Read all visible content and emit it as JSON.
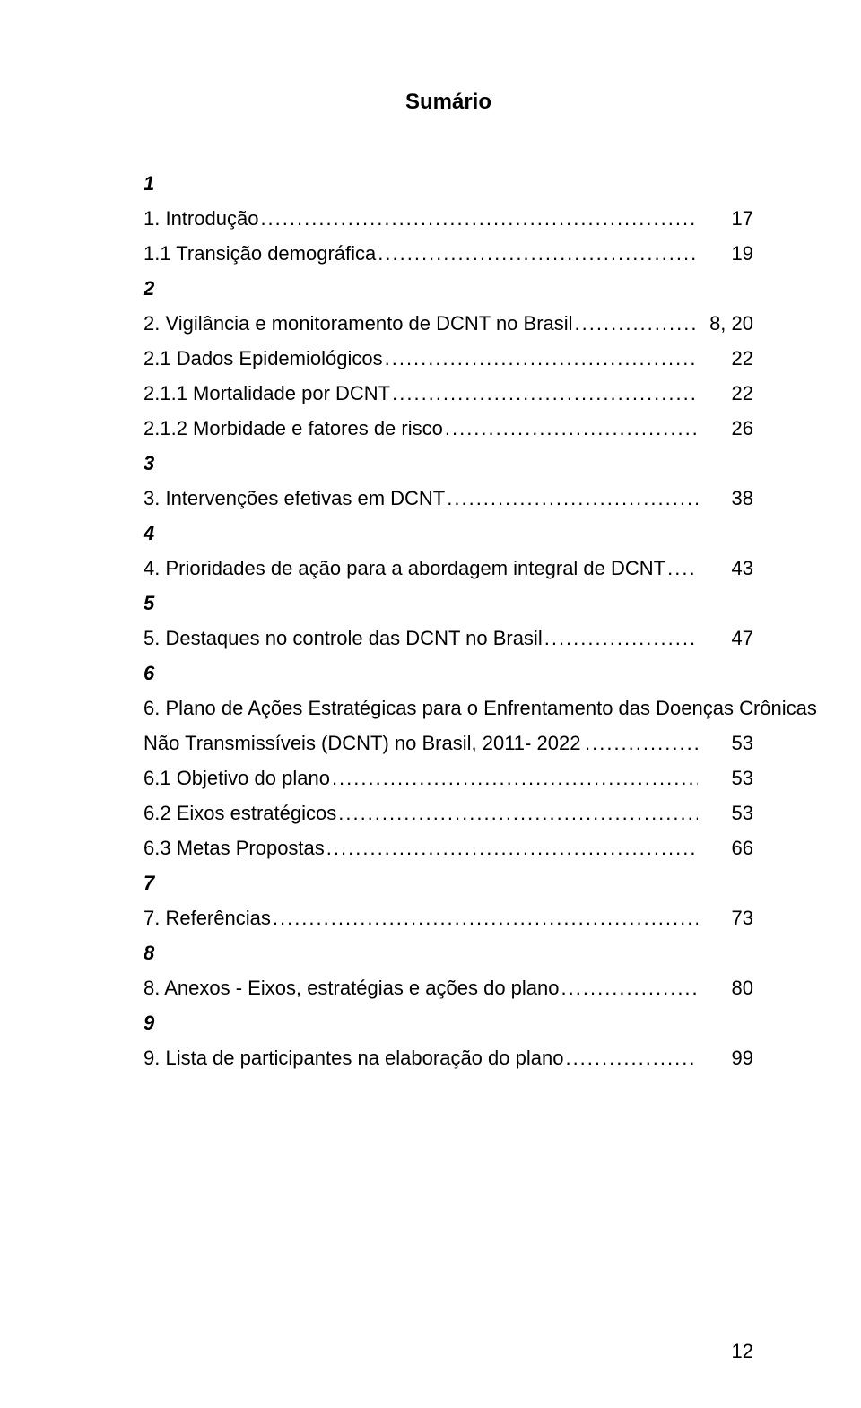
{
  "page": {
    "title": "Sumário",
    "page_number": "12",
    "colors": {
      "background": "#ffffff",
      "text": "#000000"
    },
    "typography": {
      "title_fontsize": 24,
      "body_fontsize": 22,
      "font_family": "Arial"
    },
    "entries": [
      {
        "bold": true,
        "label": "1",
        "continuation": "",
        "page": "",
        "no_leader": true
      },
      {
        "bold": false,
        "label": "1. Introdução",
        "page": " 17"
      },
      {
        "bold": false,
        "label": "1.1 Transição demográfica",
        "page": " 19"
      },
      {
        "bold": true,
        "label": "2",
        "continuation": "",
        "page": "",
        "no_leader": true
      },
      {
        "bold": false,
        "label": "2. Vigilância e monitoramento de DCNT no Brasil",
        "page": " 8, 20"
      },
      {
        "bold": false,
        "label": "2.1 Dados Epidemiológicos",
        "page": " 22"
      },
      {
        "bold": false,
        "label": "2.1.1 Mortalidade por DCNT",
        "page": " 22"
      },
      {
        "bold": false,
        "label": "2.1.2 Morbidade e fatores de risco",
        "page": " 26"
      },
      {
        "bold": true,
        "label": "3",
        "continuation": "",
        "page": "",
        "no_leader": true
      },
      {
        "bold": false,
        "label": "3. Intervenções efetivas em DCNT",
        "page": " 38"
      },
      {
        "bold": true,
        "label": "4",
        "continuation": "",
        "page": "",
        "no_leader": true
      },
      {
        "bold": false,
        "label": "4. Prioridades de ação para a abordagem integral de DCNT",
        "page": " 43"
      },
      {
        "bold": true,
        "label": "5",
        "continuation": "",
        "page": "",
        "no_leader": true
      },
      {
        "bold": false,
        "label": "5. Destaques no controle das DCNT no Brasil",
        "page": " 47"
      },
      {
        "bold": true,
        "label": "6",
        "continuation": "",
        "page": "",
        "no_leader": true
      },
      {
        "bold": false,
        "label": "6. Plano de Ações Estratégicas para o Enfrentamento das Doenças Crônicas",
        "continuation": "Não Transmissíveis (DCNT) no Brasil, 2011- 2022",
        "page": " 53",
        "wrap": true
      },
      {
        "bold": false,
        "label": "6.1 Objetivo do plano",
        "page": " 53"
      },
      {
        "bold": false,
        "label": "6.2 Eixos estratégicos",
        "page": " 53"
      },
      {
        "bold": false,
        "label": "6.3 Metas Propostas",
        "page": " 66"
      },
      {
        "bold": true,
        "label": "7",
        "continuation": "",
        "page": "",
        "no_leader": true
      },
      {
        "bold": false,
        "label": "7. Referências",
        "page": " 73"
      },
      {
        "bold": true,
        "label": "8",
        "continuation": "",
        "page": "",
        "no_leader": true
      },
      {
        "bold": false,
        "label": "8. Anexos - Eixos, estratégias e ações do plano",
        "page": " 80"
      },
      {
        "bold": true,
        "label": "9",
        "continuation": "",
        "page": "",
        "no_leader": true
      },
      {
        "bold": false,
        "label": "9. Lista de participantes na elaboração do plano",
        "page": " 99"
      }
    ]
  }
}
